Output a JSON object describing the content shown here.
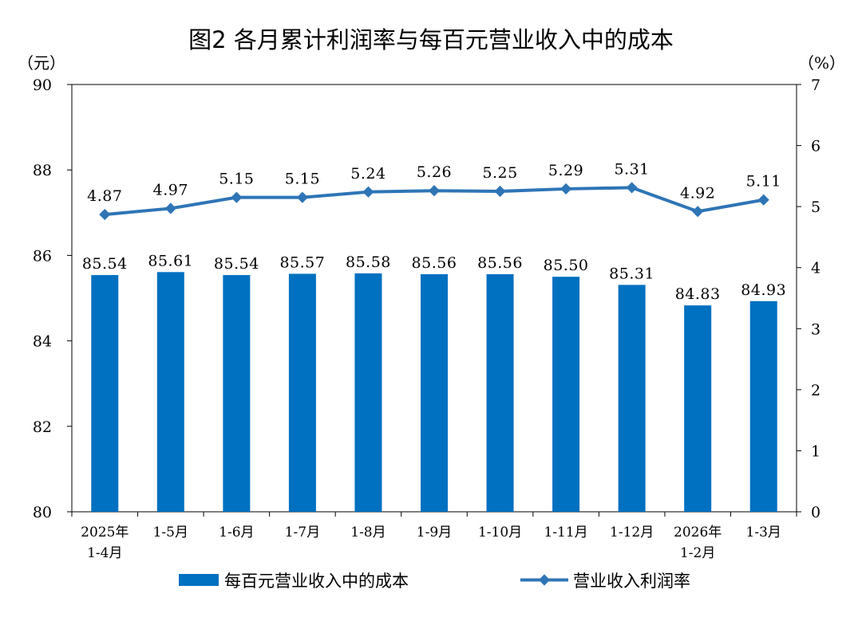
{
  "chart_data": {
    "type": "bar",
    "title": "图2  各月累计利润率与每百元营业收入中的成本",
    "left_axis_unit": "（元）",
    "right_axis_unit": "（%）",
    "categories": [
      [
        "2025年",
        "1-4月"
      ],
      [
        "1-5月"
      ],
      [
        "1-6月"
      ],
      [
        "1-7月"
      ],
      [
        "1-8月"
      ],
      [
        "1-9月"
      ],
      [
        "1-10月"
      ],
      [
        "1-11月"
      ],
      [
        "1-12月"
      ],
      [
        "2026年",
        "1-2月"
      ],
      [
        "1-3月"
      ]
    ],
    "left_axis": {
      "min": 80,
      "max": 90,
      "ticks": [
        "80",
        "82",
        "84",
        "86",
        "88",
        "90"
      ]
    },
    "right_axis": {
      "min": 0,
      "max": 7,
      "ticks": [
        "0",
        "1",
        "2",
        "3",
        "4",
        "5",
        "6",
        "7"
      ]
    },
    "series": [
      {
        "name": "每百元营业收入中的成本",
        "type": "bar",
        "axis": "left",
        "color": "#0070c0",
        "values": [
          85.54,
          85.61,
          85.54,
          85.57,
          85.58,
          85.56,
          85.56,
          85.5,
          85.31,
          84.83,
          84.93
        ],
        "labels": [
          "85.54",
          "85.61",
          "85.54",
          "85.57",
          "85.58",
          "85.56",
          "85.56",
          "85.50",
          "85.31",
          "84.83",
          "84.93"
        ]
      },
      {
        "name": "营业收入利润率",
        "type": "line",
        "axis": "right",
        "color": "#2e75b6",
        "values": [
          4.87,
          4.97,
          5.15,
          5.15,
          5.24,
          5.26,
          5.25,
          5.29,
          5.31,
          4.92,
          5.11
        ],
        "labels": [
          "4.87",
          "4.97",
          "5.15",
          "5.15",
          "5.24",
          "5.26",
          "5.25",
          "5.29",
          "5.31",
          "4.92",
          "5.11"
        ]
      }
    ]
  }
}
